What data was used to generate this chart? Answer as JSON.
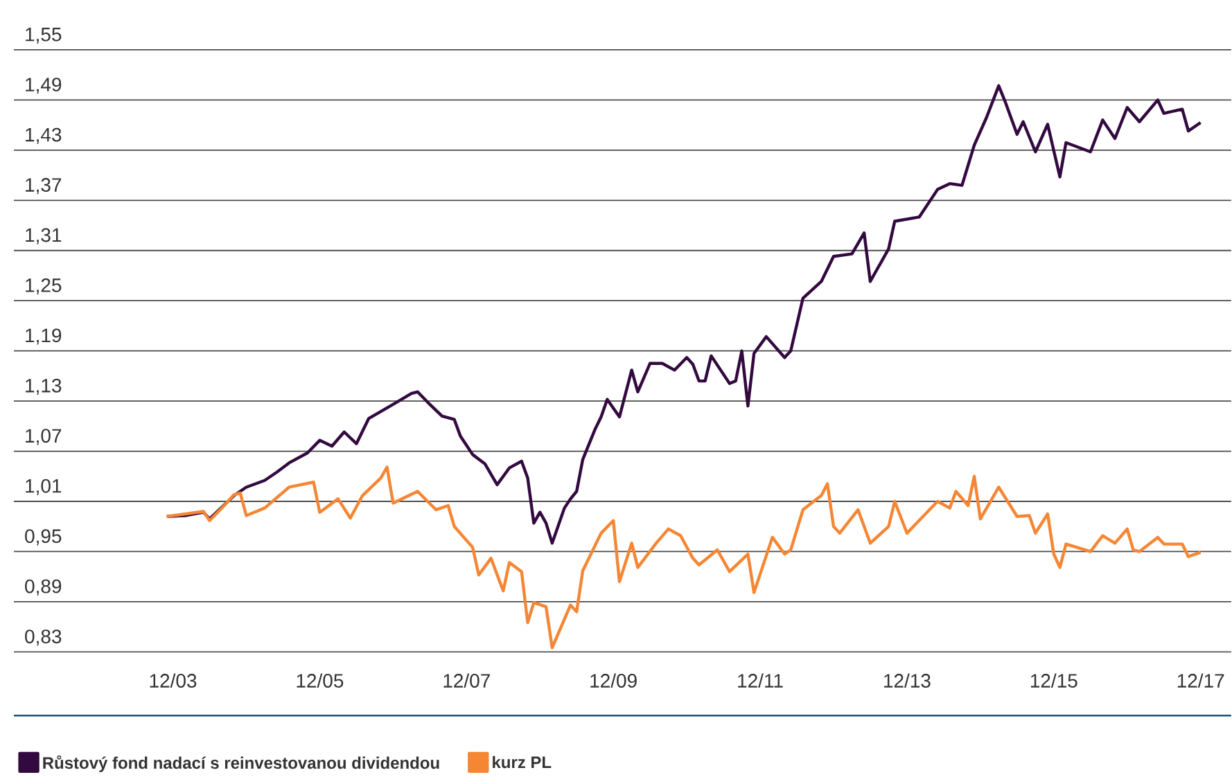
{
  "chart_data": {
    "type": "line",
    "xlim": [
      "2001-10",
      "2018-05"
    ],
    "ylim": [
      0.83,
      1.55
    ],
    "xticks": [
      {
        "value": "2003-12",
        "label": "12/03"
      },
      {
        "value": "2005-12",
        "label": "12/05"
      },
      {
        "value": "2007-12",
        "label": "12/07"
      },
      {
        "value": "2009-12",
        "label": "12/09"
      },
      {
        "value": "2011-12",
        "label": "12/11"
      },
      {
        "value": "2013-12",
        "label": "12/13"
      },
      {
        "value": "2015-12",
        "label": "12/15"
      },
      {
        "value": "2017-12",
        "label": "12/17"
      }
    ],
    "yticks": [
      {
        "value": 0.83,
        "label": "0,83"
      },
      {
        "value": 0.89,
        "label": "0,89"
      },
      {
        "value": 0.95,
        "label": "0,95"
      },
      {
        "value": 1.01,
        "label": "1,01"
      },
      {
        "value": 1.07,
        "label": "1,07"
      },
      {
        "value": 1.13,
        "label": "1,13"
      },
      {
        "value": 1.19,
        "label": "1,19"
      },
      {
        "value": 1.25,
        "label": "1,25"
      },
      {
        "value": 1.31,
        "label": "1,31"
      },
      {
        "value": 1.37,
        "label": "1,37"
      },
      {
        "value": 1.43,
        "label": "1,43"
      },
      {
        "value": 1.49,
        "label": "1,49"
      },
      {
        "value": 1.55,
        "label": "1,55"
      }
    ],
    "grid": "y",
    "legend": "bottom",
    "marker": "none",
    "line_style": "solid",
    "series": [
      {
        "name": "Růstový fond nadací s reinvestovanou dividendou",
        "color": "#330a3f",
        "x": [
          "2003-11",
          "2004-02",
          "2004-05",
          "2004-06",
          "2004-08",
          "2004-10",
          "2004-12",
          "2005-03",
          "2005-05",
          "2005-07",
          "2005-10",
          "2005-12",
          "2006-02",
          "2006-04",
          "2006-06",
          "2006-08",
          "2006-12",
          "2007-03",
          "2007-04",
          "2007-06",
          "2007-08",
          "2007-10",
          "2007-11",
          "2008-01",
          "2008-03",
          "2008-05",
          "2008-07",
          "2008-09",
          "2008-10",
          "2008-11",
          "2008-12",
          "2009-01",
          "2009-02",
          "2009-04",
          "2009-05",
          "2009-06",
          "2009-07",
          "2009-09",
          "2009-10",
          "2009-11",
          "2010-01",
          "2010-03",
          "2010-04",
          "2010-06",
          "2010-08",
          "2010-10",
          "2010-12",
          "2011-01",
          "2011-02",
          "2011-03",
          "2011-04",
          "2011-07",
          "2011-08",
          "2011-09",
          "2011-10",
          "2011-11",
          "2012-01",
          "2012-04",
          "2012-05",
          "2012-07",
          "2012-10",
          "2012-12",
          "2013-03",
          "2013-05",
          "2013-06",
          "2013-09",
          "2013-10",
          "2014-02",
          "2014-05",
          "2014-07",
          "2014-09",
          "2014-11",
          "2015-01",
          "2015-03",
          "2015-04",
          "2015-06",
          "2015-07",
          "2015-09",
          "2015-11",
          "2016-01",
          "2016-02",
          "2016-06",
          "2016-08",
          "2016-10",
          "2016-12",
          "2017-02",
          "2017-05",
          "2017-06",
          "2017-09",
          "2017-10",
          "2017-12"
        ],
        "values": [
          0.992,
          0.993,
          0.997,
          0.989,
          1.003,
          1.017,
          1.027,
          1.035,
          1.045,
          1.056,
          1.068,
          1.083,
          1.076,
          1.093,
          1.079,
          1.109,
          1.126,
          1.139,
          1.141,
          1.126,
          1.112,
          1.108,
          1.088,
          1.066,
          1.055,
          1.03,
          1.05,
          1.058,
          1.038,
          0.984,
          0.997,
          0.984,
          0.96,
          1.002,
          1.013,
          1.022,
          1.06,
          1.096,
          1.111,
          1.132,
          1.111,
          1.167,
          1.141,
          1.175,
          1.175,
          1.167,
          1.182,
          1.174,
          1.154,
          1.154,
          1.184,
          1.151,
          1.154,
          1.19,
          1.124,
          1.187,
          1.207,
          1.182,
          1.19,
          1.253,
          1.273,
          1.303,
          1.306,
          1.331,
          1.273,
          1.312,
          1.345,
          1.35,
          1.383,
          1.39,
          1.388,
          1.436,
          1.469,
          1.507,
          1.489,
          1.449,
          1.464,
          1.428,
          1.461,
          1.398,
          1.439,
          1.428,
          1.466,
          1.444,
          1.481,
          1.464,
          1.49,
          1.474,
          1.479,
          1.453,
          1.463
        ]
      },
      {
        "name": "kurz PL",
        "color": "#f58634",
        "x": [
          "2003-11",
          "2004-05",
          "2004-06",
          "2004-08",
          "2004-10",
          "2004-11",
          "2004-12",
          "2005-03",
          "2005-07",
          "2005-11",
          "2005-12",
          "2006-03",
          "2006-05",
          "2006-07",
          "2006-10",
          "2006-11",
          "2006-12",
          "2007-04",
          "2007-07",
          "2007-09",
          "2007-10",
          "2008-01",
          "2008-02",
          "2008-04",
          "2008-06",
          "2008-07",
          "2008-09",
          "2008-10",
          "2008-11",
          "2009-01",
          "2009-02",
          "2009-05",
          "2009-06",
          "2009-07",
          "2009-10",
          "2009-12",
          "2010-01",
          "2010-03",
          "2010-04",
          "2010-07",
          "2010-09",
          "2010-11",
          "2011-01",
          "2011-02",
          "2011-05",
          "2011-07",
          "2011-10",
          "2011-11",
          "2012-02",
          "2012-04",
          "2012-05",
          "2012-07",
          "2012-10",
          "2012-11",
          "2012-12",
          "2013-01",
          "2013-04",
          "2013-06",
          "2013-09",
          "2013-10",
          "2013-12",
          "2014-05",
          "2014-07",
          "2014-08",
          "2014-10",
          "2014-11",
          "2014-12",
          "2015-03",
          "2015-06",
          "2015-08",
          "2015-09",
          "2015-11",
          "2015-12",
          "2016-01",
          "2016-02",
          "2016-06",
          "2016-08",
          "2016-10",
          "2016-12",
          "2017-01",
          "2017-02",
          "2017-05",
          "2017-06",
          "2017-09",
          "2017-10",
          "2017-12"
        ],
        "values": [
          0.992,
          0.998,
          0.987,
          1.002,
          1.018,
          1.02,
          0.993,
          1.002,
          1.027,
          1.033,
          0.997,
          1.013,
          0.99,
          1.017,
          1.038,
          1.051,
          1.008,
          1.022,
          1.0,
          1.005,
          0.98,
          0.955,
          0.922,
          0.942,
          0.903,
          0.937,
          0.926,
          0.865,
          0.889,
          0.884,
          0.835,
          0.886,
          0.878,
          0.927,
          0.972,
          0.987,
          0.914,
          0.96,
          0.931,
          0.96,
          0.977,
          0.969,
          0.942,
          0.934,
          0.952,
          0.926,
          0.947,
          0.901,
          0.967,
          0.947,
          0.952,
          1.0,
          1.017,
          1.031,
          0.98,
          0.972,
          1.0,
          0.96,
          0.98,
          1.01,
          0.972,
          1.01,
          1.002,
          1.022,
          1.005,
          1.04,
          0.989,
          1.027,
          0.992,
          0.993,
          0.972,
          0.995,
          0.947,
          0.931,
          0.959,
          0.95,
          0.969,
          0.96,
          0.977,
          0.952,
          0.95,
          0.967,
          0.959,
          0.959,
          0.944,
          0.949
        ]
      }
    ]
  }
}
